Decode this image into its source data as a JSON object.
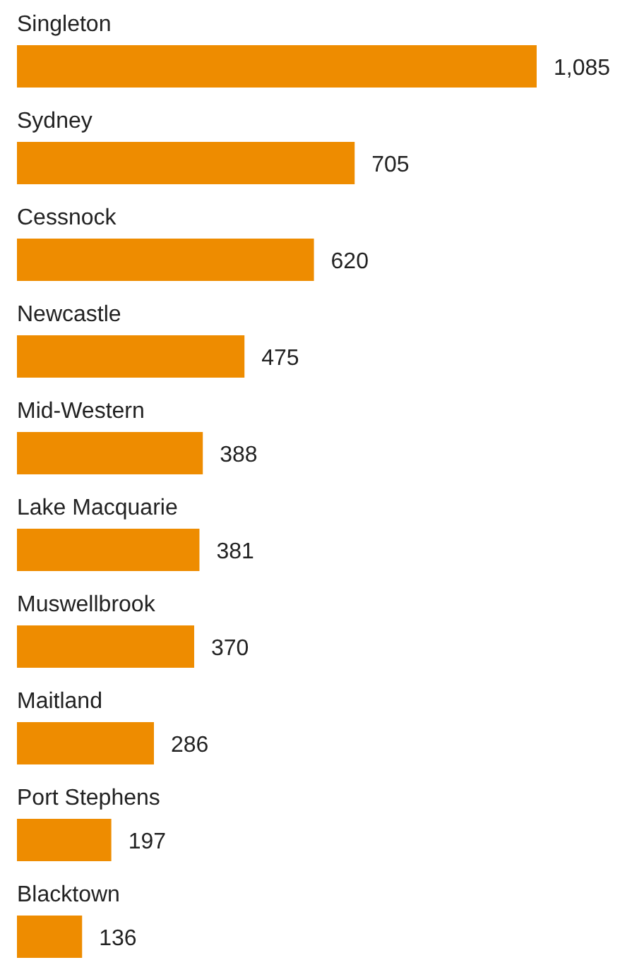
{
  "chart_data": {
    "type": "bar",
    "orientation": "horizontal",
    "categories": [
      "Singleton",
      "Sydney",
      "Cessnock",
      "Newcastle",
      "Mid-Western",
      "Lake Macquarie",
      "Muswellbrook",
      "Maitland",
      "Port Stephens",
      "Blacktown"
    ],
    "values": [
      1085,
      705,
      620,
      475,
      388,
      381,
      370,
      286,
      197,
      136
    ],
    "value_labels": [
      "1,085",
      "705",
      "620",
      "475",
      "388",
      "381",
      "370",
      "286",
      "197",
      "136"
    ],
    "color": "#ee8c00"
  }
}
